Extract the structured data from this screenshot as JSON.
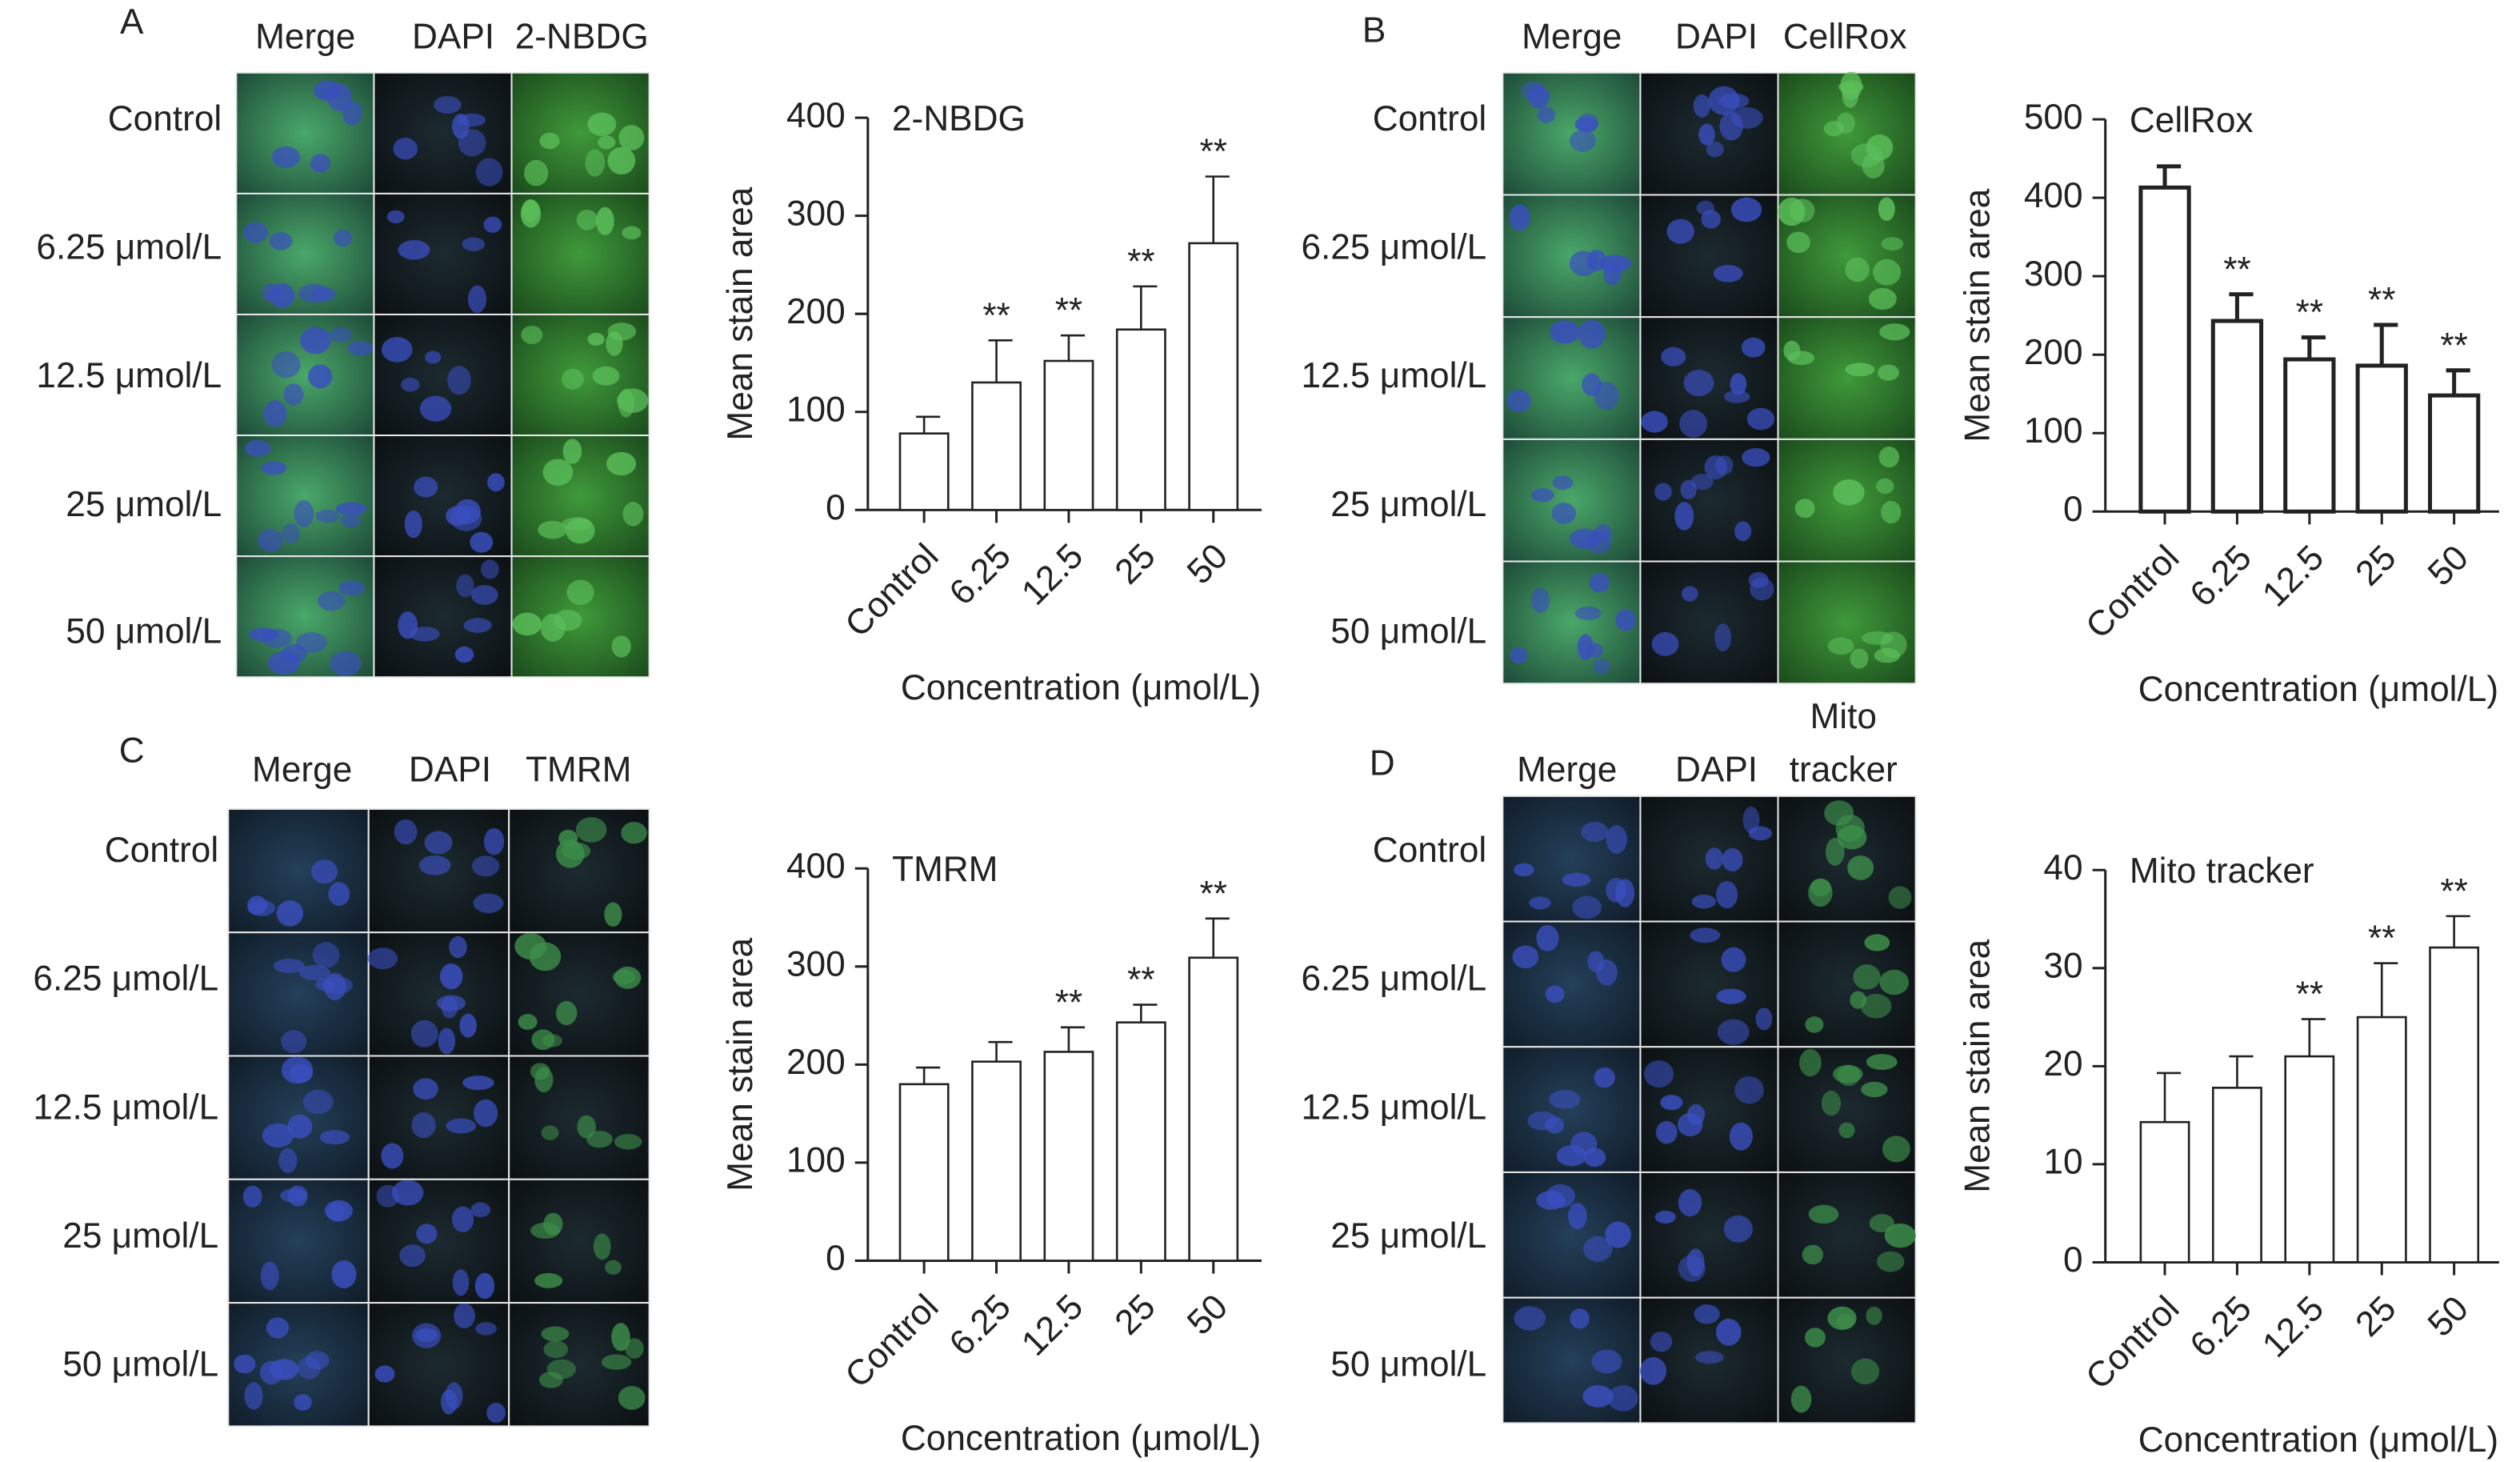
{
  "panels": [
    {
      "letter": "A",
      "columns": [
        [
          "Merge"
        ],
        [
          "DAPI"
        ],
        [
          "2-NBDG"
        ]
      ],
      "rows": [
        "Control",
        "6.25 μmol/L",
        "12.5 μmol/L",
        "25 μmol/L",
        "50 μmol/L"
      ]
    },
    {
      "letter": "B",
      "columns": [
        [
          "Merge"
        ],
        [
          "DAPI"
        ],
        [
          "CellRox"
        ]
      ],
      "rows": [
        "Control",
        "6.25 μmol/L",
        "12.5 μmol/L",
        "25 μmol/L",
        "50 μmol/L"
      ]
    },
    {
      "letter": "C",
      "columns": [
        [
          "Merge"
        ],
        [
          "DAPI"
        ],
        [
          "TMRM"
        ]
      ],
      "rows": [
        "Control",
        "6.25 μmol/L",
        "12.5 μmol/L",
        "25 μmol/L",
        "50 μmol/L"
      ]
    },
    {
      "letter": "D",
      "columns": [
        [
          "Merge"
        ],
        [
          "DAPI"
        ],
        [
          "Mito",
          "tracker"
        ]
      ],
      "rows": [
        "Control",
        "6.25 μmol/L",
        "12.5 μmol/L",
        "25 μmol/L",
        "50 μmol/L"
      ]
    }
  ],
  "chart_data": [
    {
      "type": "bar",
      "title": "2-NBDG",
      "x_label": "Concentration (μmol/L)",
      "y_label": "Mean stain area",
      "categories": [
        "Control",
        "6.25",
        "12.5",
        "25",
        "50"
      ],
      "values": [
        78,
        130,
        152,
        184,
        272
      ],
      "errors": [
        17,
        43,
        26,
        44,
        68
      ],
      "annotations": [
        null,
        "**",
        "**",
        "**",
        "**"
      ],
      "color": "#ffffff",
      "ylim": [
        0,
        400
      ],
      "yticks": [
        0,
        100,
        200,
        300,
        400
      ]
    },
    {
      "type": "bar",
      "title": "CellRox",
      "x_label": "Concentration (μmol/L)",
      "y_label": "Mean stain area",
      "categories": [
        "Control",
        "6.25",
        "12.5",
        "25",
        "50"
      ],
      "values": [
        413,
        243,
        194,
        186,
        148
      ],
      "errors": [
        27,
        34,
        28,
        52,
        32
      ],
      "annotations": [
        null,
        "**",
        "**",
        "**",
        "**"
      ],
      "color": "#ffffff",
      "ylim": [
        0,
        500
      ],
      "yticks": [
        0,
        100,
        200,
        300,
        400,
        500
      ]
    },
    {
      "type": "bar",
      "title": "TMRM",
      "x_label": "Concentration (μmol/L)",
      "y_label": "Mean stain area",
      "categories": [
        "Control",
        "6.25",
        "12.5",
        "25",
        "50"
      ],
      "values": [
        180,
        203,
        213,
        243,
        309
      ],
      "errors": [
        17,
        20,
        25,
        18,
        40
      ],
      "annotations": [
        null,
        null,
        "**",
        "**",
        "**"
      ],
      "color": "#ffffff",
      "ylim": [
        0,
        400
      ],
      "yticks": [
        0,
        100,
        200,
        300,
        400
      ]
    },
    {
      "type": "bar",
      "title": "Mito tracker",
      "x_label": "Concentration (μmol/L)",
      "y_label": "Mean stain area",
      "categories": [
        "Control",
        "6.25",
        "12.5",
        "25",
        "50"
      ],
      "values": [
        14.3,
        17.8,
        21,
        25,
        32.1
      ],
      "errors": [
        5,
        3.2,
        3.8,
        5.5,
        3.2
      ],
      "annotations": [
        null,
        null,
        "**",
        "**",
        "**"
      ],
      "color": "#ffffff",
      "ylim": [
        0,
        40
      ],
      "yticks": [
        0,
        10,
        20,
        30,
        40
      ]
    }
  ]
}
